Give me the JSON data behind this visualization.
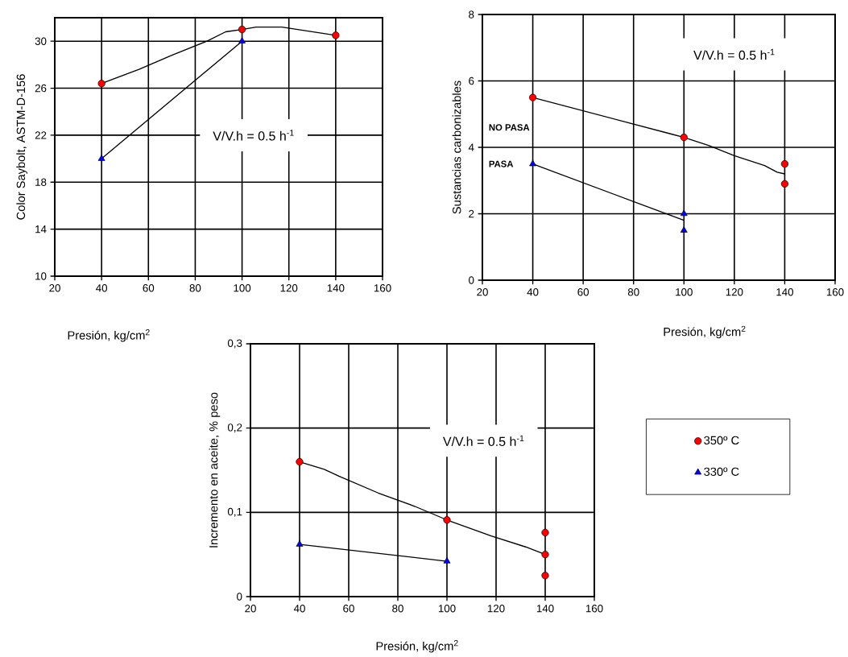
{
  "chart_data": [
    {
      "type": "line",
      "xlabel": "Presión, kg/cm$^{2}$",
      "ylabel": "Color Saybolt, ASTM-D-156",
      "xlim": [
        20,
        160
      ],
      "ylim": [
        10,
        32
      ],
      "xticks": [
        20,
        40,
        60,
        80,
        100,
        120,
        140,
        160
      ],
      "yticks": [
        10,
        14,
        18,
        22,
        26,
        30
      ],
      "grid": true,
      "annotations": [
        "V/V.h = 0.5 h$^{-1}$"
      ],
      "series": [
        {
          "type": "line",
          "color": "#000000",
          "x": [
            40,
            56,
            70,
            85,
            93,
            100,
            106,
            117,
            140
          ],
          "values": [
            26.4,
            27.6,
            28.8,
            30,
            30.8,
            31.0,
            31.2,
            31.2,
            30.5
          ]
        },
        {
          "type": "line",
          "color": "#000000",
          "x": [
            40,
            100
          ],
          "values": [
            20,
            30
          ]
        },
        {
          "type": "scatter",
          "marker": "circle",
          "color": "#ff0000",
          "x": [
            40,
            100,
            140
          ],
          "values": [
            26.4,
            31.0,
            30.5
          ]
        },
        {
          "type": "scatter",
          "marker": "triangle",
          "color": "#0000ff",
          "x": [
            40,
            100
          ],
          "values": [
            20,
            30
          ]
        }
      ]
    },
    {
      "type": "line",
      "xlabel": "Presión, kg/cm$^{2}$",
      "ylabel": "Sustancias carbonizables",
      "xlim": [
        20,
        160
      ],
      "ylim": [
        0,
        8
      ],
      "xticks": [
        20,
        40,
        60,
        80,
        100,
        120,
        140,
        160
      ],
      "yticks": [
        0,
        2,
        4,
        6,
        8
      ],
      "grid": true,
      "annotations": [
        "V/V.h = 0.5 h$^{-1}$",
        "NO PASA",
        "PASA"
      ],
      "series": [
        {
          "type": "line",
          "color": "#000000",
          "x": [
            40,
            95,
            100,
            110,
            120,
            132,
            137,
            140
          ],
          "values": [
            5.5,
            4.4,
            4.3,
            4.05,
            3.75,
            3.45,
            3.25,
            3.2
          ]
        },
        {
          "type": "line",
          "color": "#000000",
          "x": [
            40,
            100
          ],
          "values": [
            3.5,
            1.8
          ]
        },
        {
          "type": "scatter",
          "marker": "circle",
          "color": "#ff0000",
          "x": [
            40,
            100,
            140,
            140
          ],
          "values": [
            5.5,
            4.3,
            3.5,
            2.9
          ]
        },
        {
          "type": "scatter",
          "marker": "triangle",
          "color": "#0000ff",
          "x": [
            40,
            100,
            100
          ],
          "values": [
            3.5,
            2.0,
            1.5
          ]
        }
      ]
    },
    {
      "type": "line",
      "xlabel": "Presión, kg/cm$^{2}$",
      "ylabel": "Incremento en aceite,  % peso",
      "xlim": [
        20,
        160
      ],
      "ylim": [
        0,
        0.3
      ],
      "xticks": [
        20,
        40,
        60,
        80,
        100,
        120,
        140,
        160
      ],
      "yticks": [
        0,
        {
          "value": 0.1,
          "label": "0,1"
        },
        {
          "value": 0.2,
          "label": "0,2"
        },
        {
          "value": 0.3,
          "label": "0,3"
        }
      ],
      "grid": true,
      "legend": "right",
      "annotations": [
        "V/V.h = 0.5 h$^{-1}$"
      ],
      "series": [
        {
          "type": "line",
          "color": "#000000",
          "x": [
            40,
            50,
            56,
            72,
            87,
            100,
            118,
            132,
            140
          ],
          "values": [
            0.16,
            0.151,
            0.143,
            0.123,
            0.107,
            0.091,
            0.072,
            0.059,
            0.05
          ]
        },
        {
          "type": "line",
          "color": "#000000",
          "x": [
            40,
            100
          ],
          "values": [
            0.062,
            0.042
          ]
        },
        {
          "type": "scatter",
          "name": "350º C",
          "marker": "circle",
          "color": "#ff0000",
          "x": [
            40,
            100,
            140,
            140,
            140
          ],
          "values": [
            0.16,
            0.091,
            0.076,
            0.05,
            0.025
          ]
        },
        {
          "type": "scatter",
          "name": "330º C",
          "marker": "triangle",
          "color": "#0000ff",
          "x": [
            40,
            100
          ],
          "values": [
            0.062,
            0.042
          ]
        }
      ]
    }
  ]
}
